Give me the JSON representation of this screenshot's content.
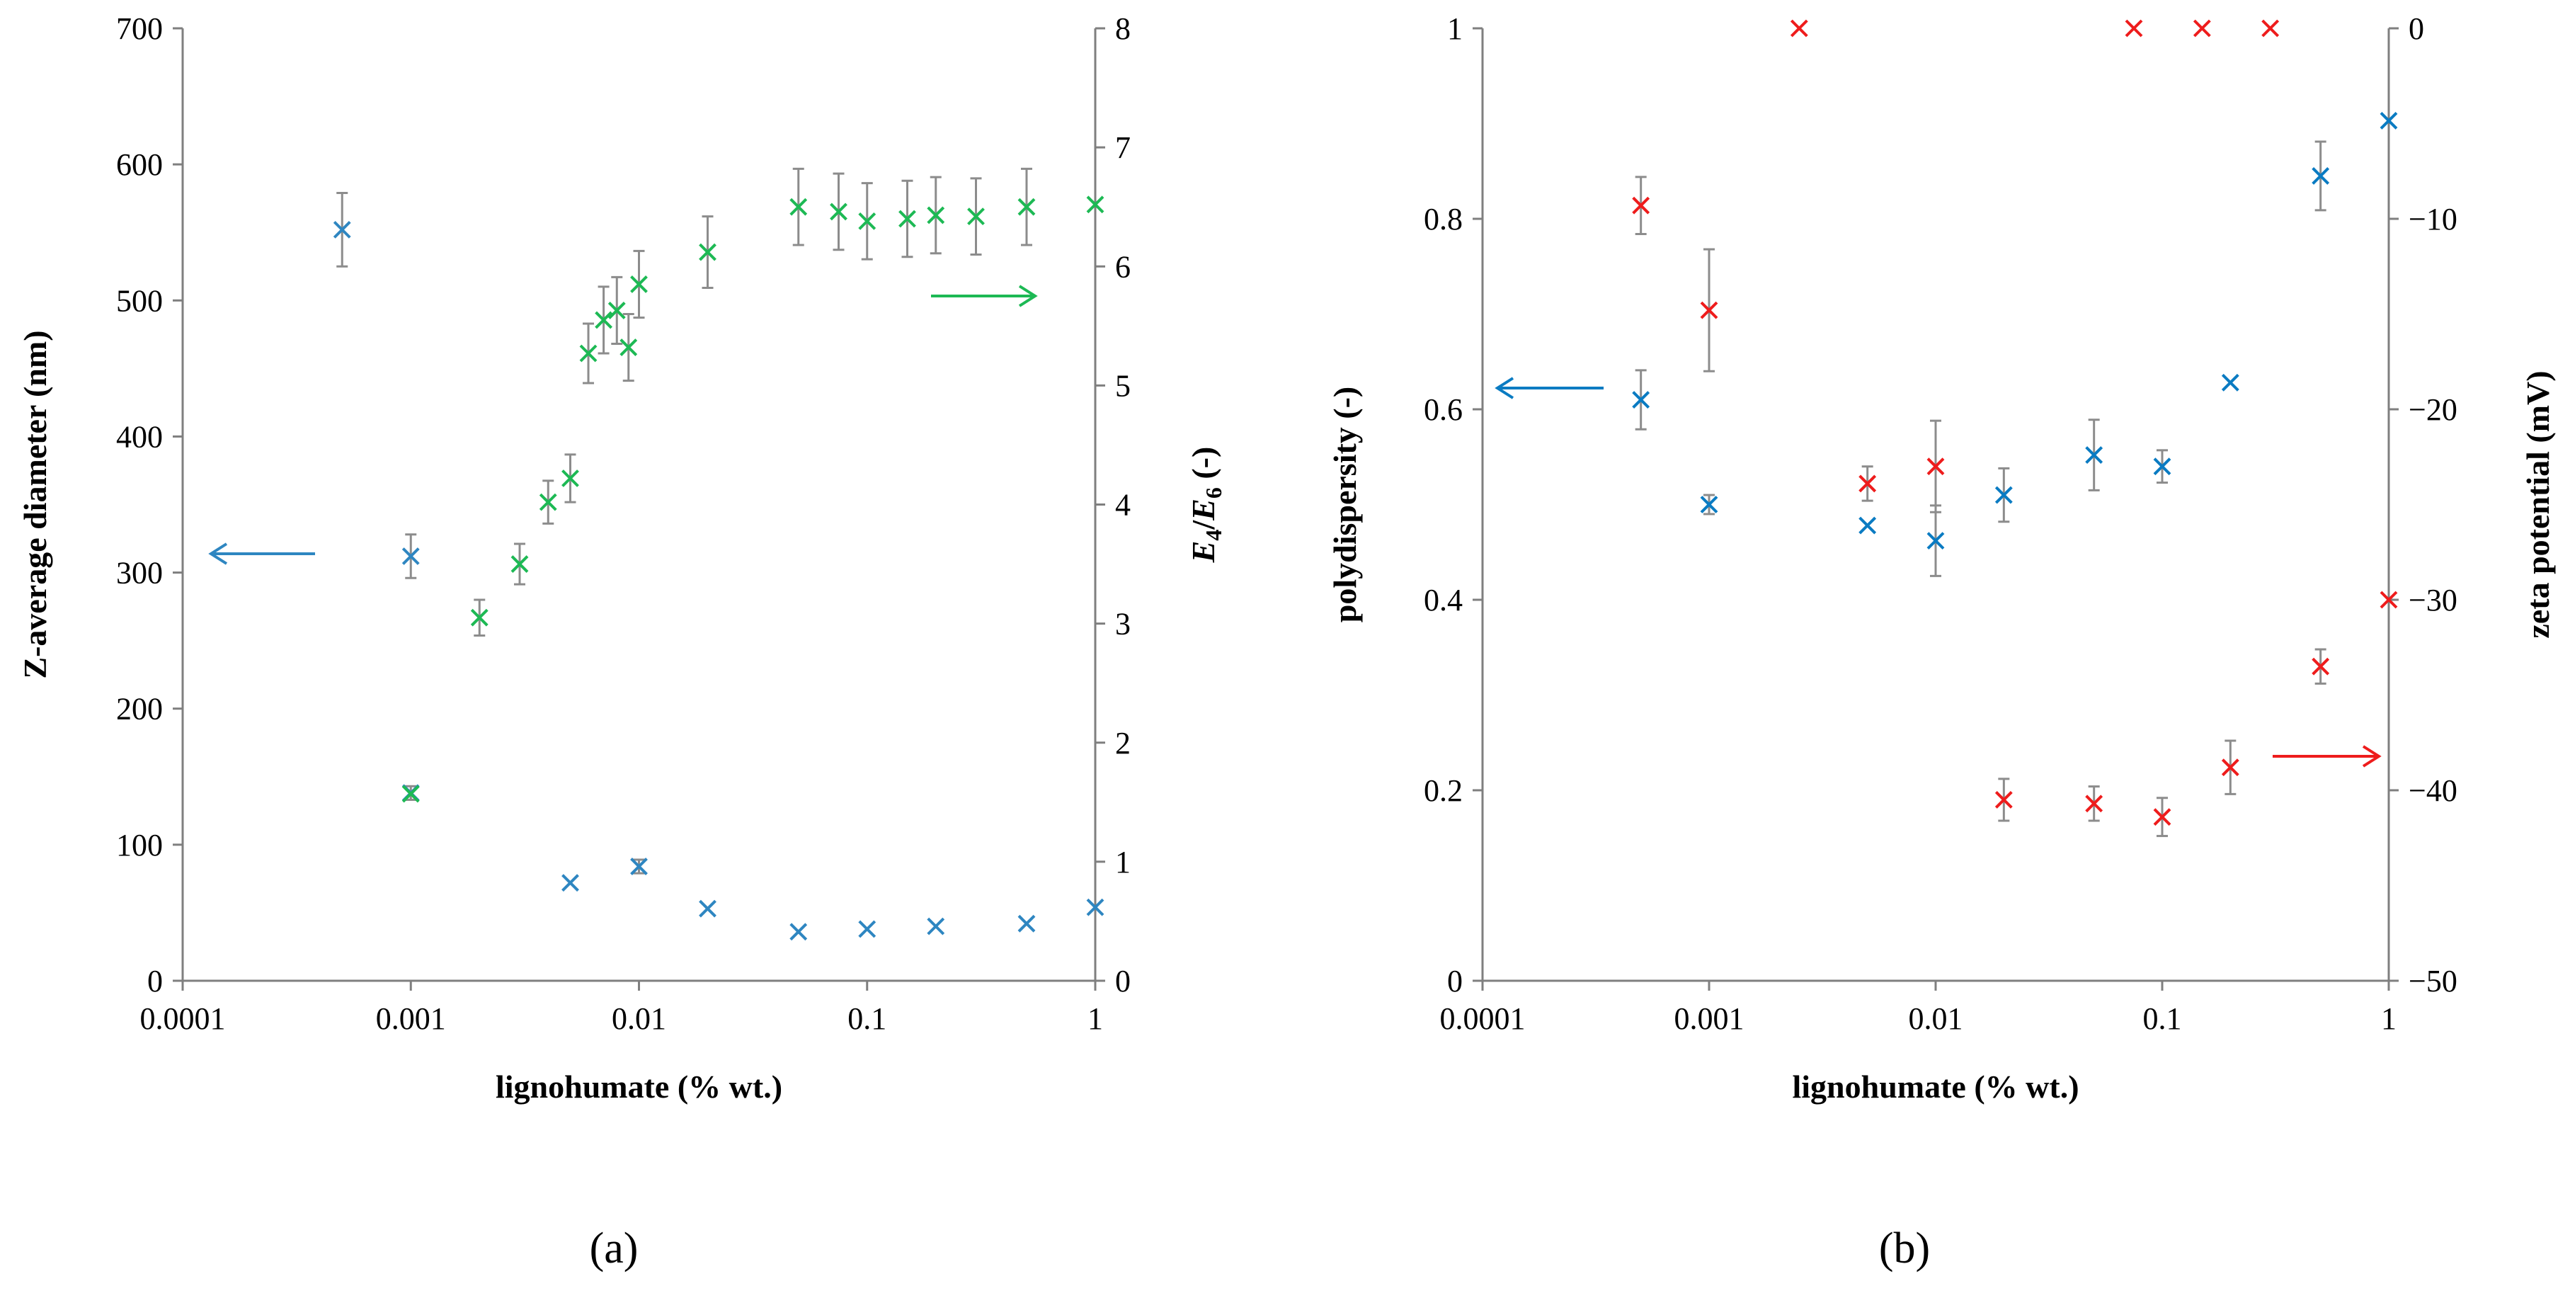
{
  "panel_labels": {
    "a": "(a)",
    "b": "(b)"
  },
  "chart_data": [
    {
      "type": "scatter",
      "panel": "a",
      "xscale": "log",
      "xlim": [
        0.0001,
        1
      ],
      "xticks": [
        0.0001,
        0.001,
        0.01,
        0.1,
        1
      ],
      "xtick_labels": [
        "0.0001",
        "0.001",
        "0.01",
        "0.1",
        "1"
      ],
      "xlabel": "lignohumate (% wt.)",
      "ylabel": "Z-average diameter (nm)",
      "ylim": [
        0,
        700
      ],
      "yticks": [
        0,
        100,
        200,
        300,
        400,
        500,
        600,
        700
      ],
      "ytick_labels": [
        "0",
        "100",
        "200",
        "300",
        "400",
        "500",
        "600",
        "700"
      ],
      "y2label": {
        "main": "E",
        "sub1": "4",
        "slash": "/",
        "main2": "E",
        "sub2": "6",
        "suffix": " (-)"
      },
      "y2lim": [
        0,
        8
      ],
      "y2ticks": [
        0,
        1,
        2,
        3,
        4,
        5,
        6,
        7,
        8
      ],
      "y2tick_labels": [
        "0",
        "1",
        "2",
        "3",
        "4",
        "5",
        "6",
        "7",
        "8"
      ],
      "series": [
        {
          "name": "Z-average diameter",
          "axis": "left",
          "color": "#2e86c1",
          "x": [
            0.0005,
            0.001,
            0.001,
            0.005,
            0.01,
            0.02,
            0.05,
            0.1,
            0.2,
            0.5,
            1
          ],
          "y": [
            552,
            312,
            138,
            72,
            84,
            53,
            36,
            38,
            40,
            42,
            54
          ],
          "err": [
            27,
            16,
            5,
            0,
            5,
            0,
            0,
            0,
            0,
            0,
            0
          ]
        },
        {
          "name": "E4/E6",
          "axis": "right",
          "color": "#1db954",
          "x": [
            0.001,
            0.002,
            0.003,
            0.004,
            0.005,
            0.006,
            0.007,
            0.008,
            0.009,
            0.01,
            0.02,
            0.05,
            0.075,
            0.1,
            0.15,
            0.2,
            0.3,
            0.5,
            1
          ],
          "y": [
            1.57,
            3.05,
            3.5,
            4.02,
            4.22,
            5.27,
            5.55,
            5.63,
            5.32,
            5.85,
            6.12,
            6.5,
            6.46,
            6.38,
            6.4,
            6.43,
            6.42,
            6.5,
            6.52
          ],
          "err": [
            0,
            0.15,
            0.17,
            0.18,
            0.2,
            0.25,
            0.28,
            0.28,
            0.28,
            0.28,
            0.3,
            0.32,
            0.32,
            0.32,
            0.32,
            0.32,
            0.32,
            0.32,
            0
          ]
        }
      ],
      "annotations": [
        {
          "type": "arrow",
          "direction": "left",
          "color": "#2e86c1",
          "points_to": "left axis"
        },
        {
          "type": "arrow",
          "direction": "right",
          "color": "#1db954",
          "points_to": "right axis"
        }
      ]
    },
    {
      "type": "scatter",
      "panel": "b",
      "xscale": "log",
      "xlim": [
        0.0001,
        1
      ],
      "xticks": [
        0.0001,
        0.001,
        0.01,
        0.1,
        1
      ],
      "xtick_labels": [
        "0.0001",
        "0.001",
        "0.01",
        "0.1",
        "1"
      ],
      "xlabel": "lignohumate (% wt.)",
      "ylabel": "polydispersity (-)",
      "ylim": [
        0,
        1
      ],
      "yticks": [
        0,
        0.2,
        0.4,
        0.6,
        0.8,
        1
      ],
      "ytick_labels": [
        "0",
        "0.2",
        "0.4",
        "0.6",
        "0.8",
        "1"
      ],
      "y2label": "zeta potential (mV)",
      "y2lim": [
        -50,
        0
      ],
      "y2ticks": [
        -50,
        -40,
        -30,
        -20,
        -10,
        0
      ],
      "y2tick_labels": [
        "−50",
        "−40",
        "−30",
        "−20",
        "−10",
        "0"
      ],
      "series": [
        {
          "name": "polydispersity",
          "axis": "left",
          "color": "#0a7bc2",
          "x": [
            0.0005,
            0.001,
            0.005,
            0.01,
            0.02,
            0.05,
            0.1,
            0.2,
            0.5,
            1
          ],
          "y": [
            0.61,
            0.5,
            0.478,
            0.462,
            0.51,
            0.552,
            0.54,
            0.628,
            0.845,
            0.903
          ],
          "err": [
            0.031,
            0.01,
            0,
            0.037,
            0.028,
            0.037,
            0.017,
            0,
            0.036,
            0
          ]
        },
        {
          "name": "zeta potential",
          "axis": "right",
          "color": "#ee1c1c",
          "x": [
            0.0005,
            0.001,
            0.0025,
            0.005,
            0.01,
            0.02,
            0.05,
            0.075,
            0.1,
            0.15,
            0.2,
            0.3,
            0.5,
            1
          ],
          "y": [
            -9.3,
            -14.8,
            0,
            -23.9,
            -23.0,
            -40.5,
            -40.7,
            0,
            -41.4,
            0,
            -38.8,
            0,
            -33.5,
            -30.0
          ],
          "err": [
            1.5,
            3.2,
            0,
            0.9,
            2.4,
            1.1,
            0.9,
            0,
            1.0,
            0,
            1.4,
            0,
            0.9,
            0
          ]
        }
      ],
      "annotations": [
        {
          "type": "arrow",
          "direction": "left",
          "color": "#0a7bc2",
          "points_to": "left axis"
        },
        {
          "type": "arrow",
          "direction": "right",
          "color": "#ee1c1c",
          "points_to": "right axis"
        }
      ]
    }
  ]
}
